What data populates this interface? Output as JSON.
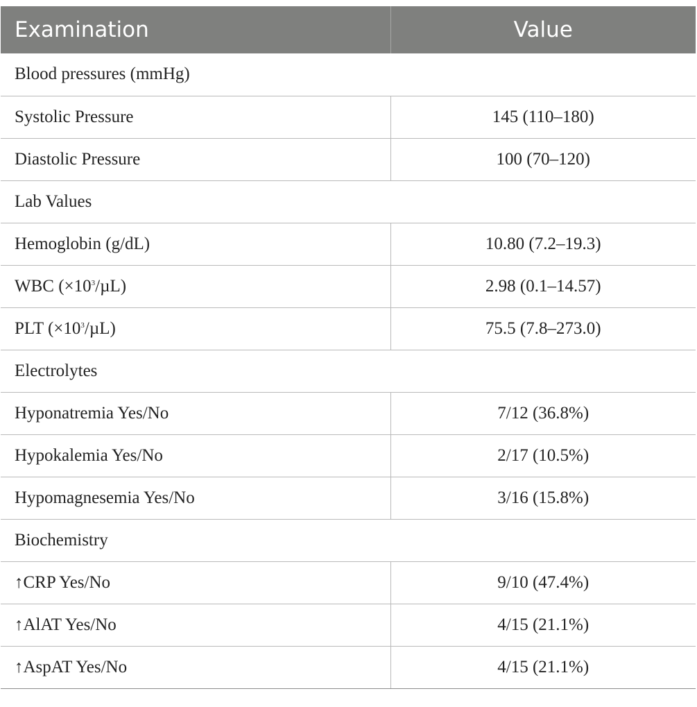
{
  "table": {
    "headers": [
      "Examination",
      "Value"
    ],
    "rows": [
      {
        "type": "section",
        "label": "Blood pressures (mmHg)"
      },
      {
        "type": "data",
        "label": "Systolic Pressure",
        "value": "145 (110–180)"
      },
      {
        "type": "data",
        "label": "Diastolic Pressure",
        "value": "100 (70–120)"
      },
      {
        "type": "section",
        "label": "Lab Values"
      },
      {
        "type": "data",
        "label": "Hemoglobin (g/dL)",
        "value": "10.80 (7.2–19.3)"
      },
      {
        "type": "data",
        "label_pre": "WBC (×10",
        "label_sup": "3",
        "label_post": "/µL)",
        "value": "2.98 (0.1–14.57)"
      },
      {
        "type": "data",
        "label_pre": "PLT (×10",
        "label_sup": "3",
        "label_post": "/µL)",
        "value": "75.5 (7.8–273.0)"
      },
      {
        "type": "section",
        "label": "Electrolytes"
      },
      {
        "type": "data",
        "label": "Hyponatremia Yes/No",
        "value": "7/12 (36.8%)"
      },
      {
        "type": "data",
        "label": "Hypokalemia Yes/No",
        "value": "2/17 (10.5%)"
      },
      {
        "type": "data",
        "label": "Hypomagnesemia Yes/No",
        "value": "3/16 (15.8%)"
      },
      {
        "type": "section",
        "label": "Biochemistry"
      },
      {
        "type": "data",
        "label": "↑CRP Yes/No",
        "value": "9/10 (47.4%)"
      },
      {
        "type": "data",
        "label": "↑AlAT Yes/No",
        "value": "4/15 (21.1%)"
      },
      {
        "type": "data",
        "label": "↑AspAT Yes/No",
        "value": "4/15 (21.1%)"
      }
    ]
  }
}
